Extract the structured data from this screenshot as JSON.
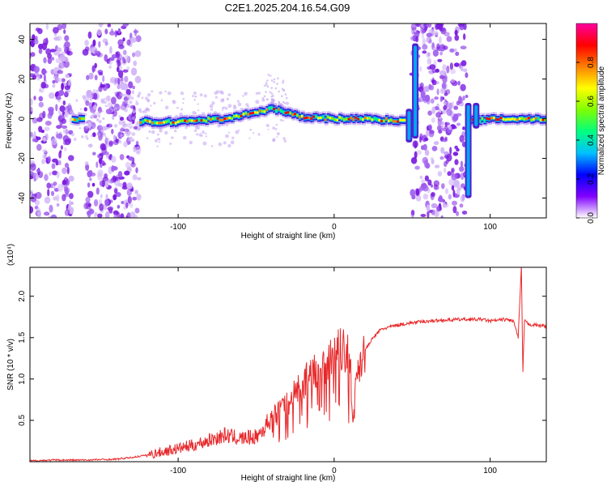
{
  "figure": {
    "title": "C2E1.2025.204.16.54.G09"
  },
  "chart_data": [
    {
      "type": "heatmap",
      "xlabel": "Height of straight line (km)",
      "ylabel": "Frequency (Hz)",
      "xlim": [
        -195,
        136
      ],
      "ylim": [
        -50,
        48
      ],
      "x_ticks": [
        -100,
        0,
        100
      ],
      "y_ticks": [
        -40,
        -20,
        0,
        20,
        40
      ],
      "colorbar": {
        "label": "Normalized spectral amplitude",
        "range": [
          0,
          1
        ],
        "ticks": [
          "0.0",
          "0.2",
          "0.4",
          "0.6",
          "0.8"
        ],
        "colors": [
          "#ffffff",
          "#8000ff",
          "#0000ff",
          "#00c0ff",
          "#00ff80",
          "#80ff00",
          "#ffff00",
          "#ff8000",
          "#ff0000",
          "#ff00a0"
        ]
      },
      "ridge": {
        "x": [
          -170,
          -150,
          -130,
          -110,
          -90,
          -70,
          -50,
          -40,
          -35,
          -30,
          -20,
          0,
          20,
          40,
          46,
          90,
          100,
          120,
          136
        ],
        "y": [
          0,
          -1,
          -1,
          -2,
          -1,
          0,
          3,
          5,
          4,
          3,
          1,
          0,
          0,
          -1,
          0,
          -1,
          0,
          0,
          0
        ]
      },
      "noise_bands": [
        [
          -195,
          -168
        ],
        [
          -160,
          -125
        ],
        [
          50,
          85
        ]
      ],
      "spikes": [
        {
          "x": 48,
          "ymin": -12,
          "ymax": 5
        },
        {
          "x": 52,
          "ymin": -10,
          "ymax": 38
        },
        {
          "x": 86,
          "ymin": -40,
          "ymax": 8
        },
        {
          "x": 91,
          "ymin": -5,
          "ymax": 8
        }
      ]
    },
    {
      "type": "line",
      "xlabel": "Height of straight line (km)",
      "ylabel": "SNR (10 * v/v)",
      "y_scale_label": "(x10⁴)",
      "xlim": [
        -195,
        136
      ],
      "ylim": [
        0,
        2.35
      ],
      "x_ticks": [
        -100,
        0,
        100
      ],
      "y_ticks": [
        "0.5",
        "1.0",
        "1.5",
        "2.0"
      ],
      "series": [
        {
          "color": "#e8282a",
          "x": [
            -195,
            -180,
            -160,
            -140,
            -130,
            -120,
            -110,
            -100,
            -90,
            -80,
            -70,
            -60,
            -50,
            -45,
            -40,
            -35,
            -30,
            -25,
            -20,
            -15,
            -10,
            -5,
            0,
            5,
            10,
            12,
            15,
            20,
            25,
            30,
            40,
            50,
            60,
            80,
            95,
            100,
            110,
            115,
            118,
            120,
            121,
            122,
            125,
            130,
            136
          ],
          "y": [
            0.01,
            0.02,
            0.02,
            0.03,
            0.05,
            0.08,
            0.12,
            0.16,
            0.2,
            0.26,
            0.32,
            0.28,
            0.3,
            0.4,
            0.55,
            0.6,
            0.7,
            0.85,
            0.95,
            1.05,
            1.15,
            1.2,
            1.3,
            1.35,
            1.3,
            0.45,
            1.15,
            1.35,
            1.5,
            1.6,
            1.65,
            1.68,
            1.7,
            1.72,
            1.72,
            1.7,
            1.72,
            1.7,
            1.5,
            2.35,
            1.1,
            1.7,
            1.66,
            1.65,
            1.64
          ]
        }
      ]
    }
  ]
}
